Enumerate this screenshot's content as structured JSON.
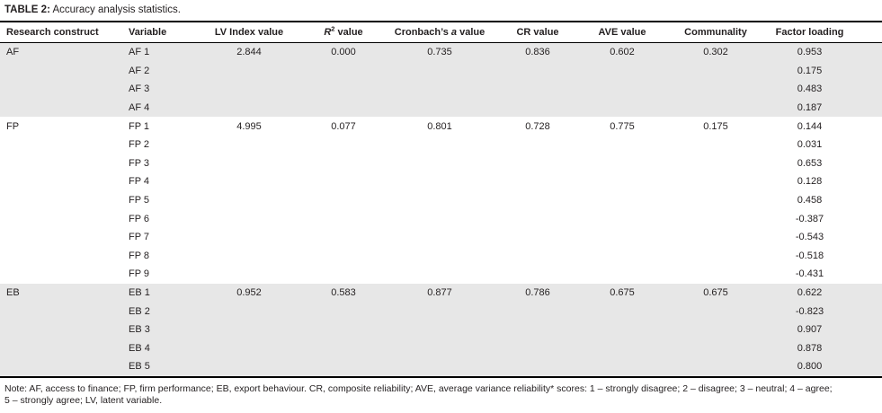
{
  "title": {
    "label": "TABLE 2:",
    "text": " Accuracy analysis statistics."
  },
  "colors": {
    "shaded_row": "#e7e7e7",
    "rule": "#000000",
    "text": "#231f20"
  },
  "table": {
    "columns": [
      {
        "name": "research-construct",
        "align": "left",
        "segments": [
          {
            "t": "Research construct"
          }
        ]
      },
      {
        "name": "variable",
        "align": "left",
        "segments": [
          {
            "t": "Variable"
          }
        ]
      },
      {
        "name": "lv-index-value",
        "align": "center",
        "segments": [
          {
            "t": "LV Index value"
          }
        ]
      },
      {
        "name": "r2-value",
        "align": "center",
        "segments": [
          {
            "t": "R",
            "style": "italic"
          },
          {
            "t": "2",
            "style": "sup"
          },
          {
            "t": " value"
          }
        ]
      },
      {
        "name": "cronbachs-a-value",
        "align": "center",
        "segments": [
          {
            "t": "Cronbach’s "
          },
          {
            "t": "a",
            "style": "italic"
          },
          {
            "t": " value"
          }
        ]
      },
      {
        "name": "cr-value",
        "align": "center",
        "segments": [
          {
            "t": "CR value"
          }
        ]
      },
      {
        "name": "ave-value",
        "align": "center",
        "segments": [
          {
            "t": "AVE value"
          }
        ]
      },
      {
        "name": "communality",
        "align": "center",
        "segments": [
          {
            "t": "Communality"
          }
        ]
      },
      {
        "name": "factor-loading",
        "align": "center",
        "segments": [
          {
            "t": "Factor loading"
          }
        ]
      }
    ],
    "sections": [
      {
        "construct": "AF",
        "shaded": true,
        "rows": [
          [
            "AF 1",
            "2.844",
            "0.000",
            "0.735",
            "0.836",
            "0.602",
            "0.302",
            "0.953"
          ],
          [
            "AF 2",
            "",
            "",
            "",
            "",
            "",
            "",
            "0.175"
          ],
          [
            "AF 3",
            "",
            "",
            "",
            "",
            "",
            "",
            "0.483"
          ],
          [
            "AF 4",
            "",
            "",
            "",
            "",
            "",
            "",
            "0.187"
          ]
        ]
      },
      {
        "construct": "FP",
        "shaded": false,
        "rows": [
          [
            "FP 1",
            "4.995",
            "0.077",
            "0.801",
            "0.728",
            "0.775",
            "0.175",
            "0.144"
          ],
          [
            "FP 2",
            "",
            "",
            "",
            "",
            "",
            "",
            "0.031"
          ],
          [
            "FP 3",
            "",
            "",
            "",
            "",
            "",
            "",
            "0.653"
          ],
          [
            "FP 4",
            "",
            "",
            "",
            "",
            "",
            "",
            "0.128"
          ],
          [
            "FP 5",
            "",
            "",
            "",
            "",
            "",
            "",
            "0.458"
          ],
          [
            "FP 6",
            "",
            "",
            "",
            "",
            "",
            "",
            "-0.387"
          ],
          [
            "FP 7",
            "",
            "",
            "",
            "",
            "",
            "",
            "-0.543"
          ],
          [
            "FP 8",
            "",
            "",
            "",
            "",
            "",
            "",
            "-0.518"
          ],
          [
            "FP 9",
            "",
            "",
            "",
            "",
            "",
            "",
            "-0.431"
          ]
        ]
      },
      {
        "construct": "EB",
        "shaded": true,
        "rows": [
          [
            "EB 1",
            "0.952",
            "0.583",
            "0.877",
            "0.786",
            "0.675",
            "0.675",
            "0.622"
          ],
          [
            "EB 2",
            "",
            "",
            "",
            "",
            "",
            "",
            "-0.823"
          ],
          [
            "EB 3",
            "",
            "",
            "",
            "",
            "",
            "",
            "0.907"
          ],
          [
            "EB 4",
            "",
            "",
            "",
            "",
            "",
            "",
            "0.878"
          ],
          [
            "EB 5",
            "",
            "",
            "",
            "",
            "",
            "",
            "0.800"
          ]
        ]
      }
    ]
  },
  "note": {
    "line1": "Note: AF, access to finance; FP, firm performance; EB, export behaviour. CR, composite reliability; AVE, average variance reliability* scores: 1 – strongly disagree; 2 – disagree; 3 – neutral; 4 – agree;",
    "line2": "5 – strongly agree; LV, latent variable."
  }
}
